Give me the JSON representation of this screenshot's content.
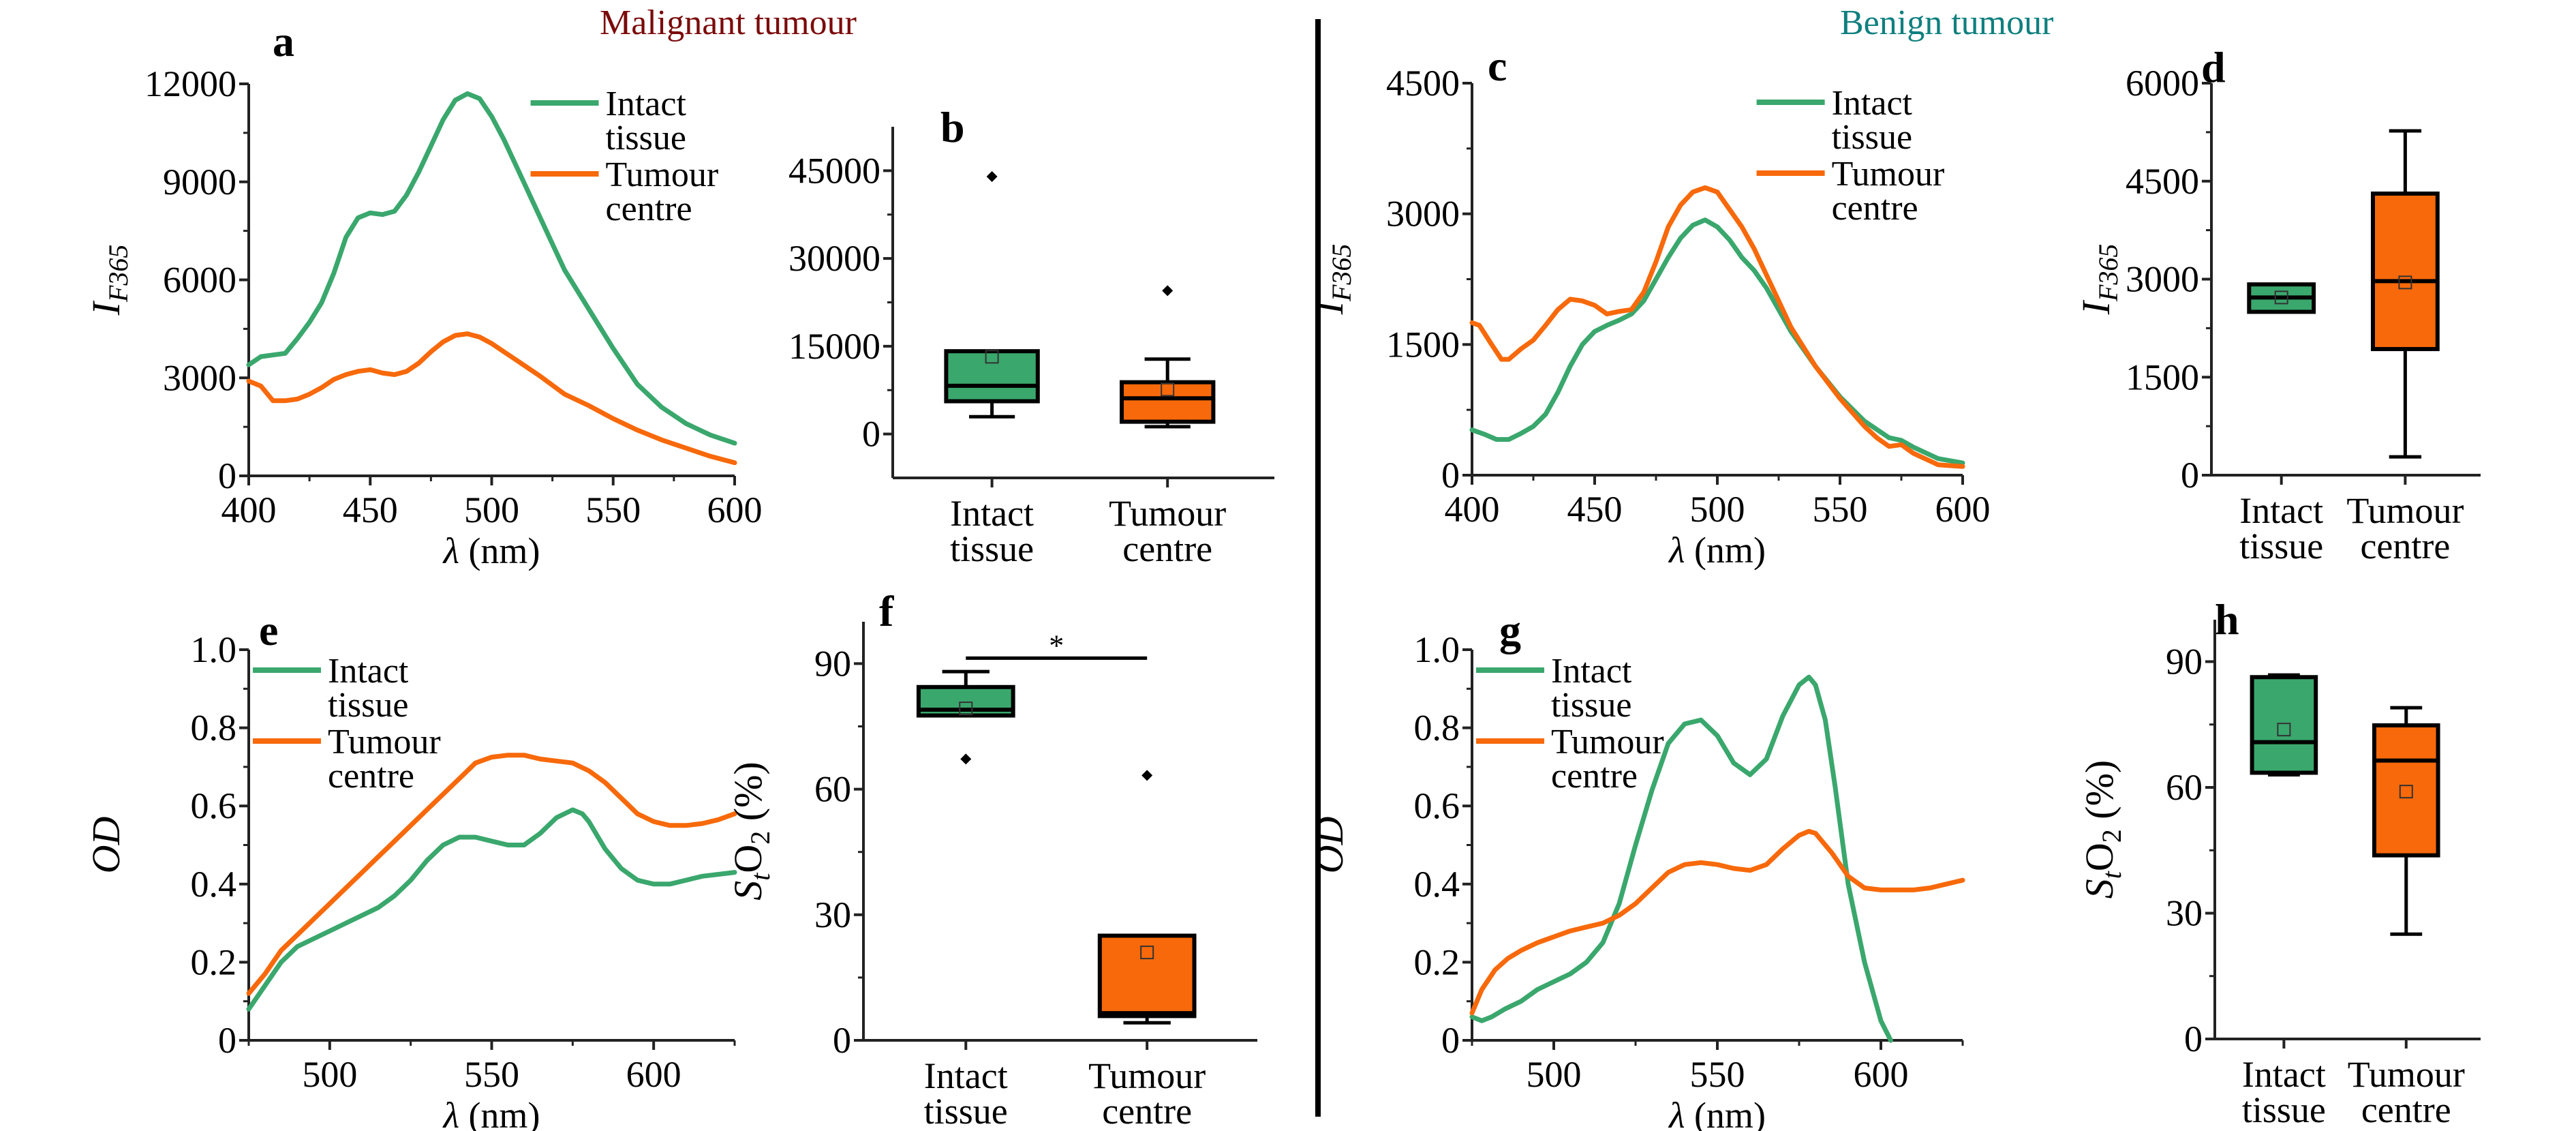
{
  "titles": {
    "malignant": "Malignant tumour",
    "benign": "Benign tumour"
  },
  "colors": {
    "intact": "#3aa76d",
    "tumour": "#f7690a",
    "malignant_title": "#7b0a0a",
    "benign_title": "#0f7f7f"
  },
  "chart_data": [
    {
      "panel": "a",
      "type": "line",
      "title": "",
      "xlabel": "λ (nm)",
      "ylabel": "I_F365",
      "ylabel_main": "I",
      "ylabel_sub": "F365",
      "xlim": [
        400,
        600
      ],
      "ylim": [
        0,
        12000
      ],
      "xticks": [
        400,
        450,
        500,
        550,
        600
      ],
      "yticks": [
        0,
        3000,
        6000,
        9000,
        12000
      ],
      "legend": "top-right",
      "series": [
        {
          "name": "Intact tissue",
          "key": "intact",
          "x": [
            400,
            405,
            410,
            415,
            420,
            425,
            430,
            435,
            440,
            445,
            450,
            455,
            460,
            465,
            470,
            475,
            480,
            485,
            490,
            495,
            500,
            505,
            510,
            515,
            520,
            525,
            530,
            540,
            550,
            560,
            570,
            580,
            590,
            600
          ],
          "y": [
            3400,
            3650,
            3700,
            3750,
            4200,
            4700,
            5300,
            6200,
            7300,
            7900,
            8050,
            8000,
            8100,
            8600,
            9300,
            10100,
            10900,
            11500,
            11700,
            11550,
            11000,
            10300,
            9500,
            8700,
            7900,
            7100,
            6300,
            5100,
            3900,
            2800,
            2100,
            1600,
            1250,
            1000
          ]
        },
        {
          "name": "Tumour centre",
          "key": "tumour",
          "x": [
            400,
            405,
            410,
            415,
            420,
            425,
            430,
            435,
            440,
            445,
            450,
            455,
            460,
            465,
            470,
            475,
            480,
            485,
            490,
            495,
            500,
            505,
            510,
            520,
            530,
            540,
            550,
            560,
            570,
            580,
            590,
            600
          ],
          "y": [
            2900,
            2750,
            2300,
            2300,
            2350,
            2500,
            2700,
            2950,
            3100,
            3200,
            3250,
            3150,
            3100,
            3200,
            3450,
            3800,
            4100,
            4300,
            4350,
            4250,
            4050,
            3800,
            3550,
            3050,
            2500,
            2150,
            1750,
            1400,
            1100,
            850,
            600,
            400
          ]
        }
      ]
    },
    {
      "panel": "b",
      "type": "box",
      "ylabel": "",
      "ylim": [
        -7500,
        52500
      ],
      "yticks": [
        0,
        15000,
        30000,
        45000
      ],
      "categories": [
        "Intact tissue",
        "Tumour centre"
      ],
      "category_lines": [
        [
          "Intact",
          "tissue"
        ],
        [
          "Tumour",
          "centre"
        ]
      ],
      "boxes": [
        {
          "key": "intact",
          "whisker_low": 2950,
          "q1": 5600,
          "median": 8250,
          "q3": 14150,
          "whisker_high": 14150,
          "mean": 13200,
          "outliers": [
            44000
          ]
        },
        {
          "key": "tumour",
          "whisker_low": 1250,
          "q1": 2100,
          "median": 6100,
          "q3": 8850,
          "whisker_high": 12800,
          "mean": 7600,
          "outliers": [
            24500
          ]
        }
      ]
    },
    {
      "panel": "c",
      "type": "line",
      "xlabel": "λ (nm)",
      "ylabel": "I_F365",
      "ylabel_main": "I",
      "ylabel_sub": "F365",
      "xlim": [
        400,
        600
      ],
      "ylim": [
        0,
        4500
      ],
      "xticks": [
        400,
        450,
        500,
        550,
        600
      ],
      "yticks": [
        0,
        1500,
        3000,
        4500
      ],
      "legend": "top-right",
      "series": [
        {
          "name": "Intact tissue",
          "key": "intact",
          "x": [
            400,
            405,
            410,
            415,
            420,
            425,
            430,
            435,
            440,
            445,
            450,
            455,
            460,
            465,
            470,
            475,
            480,
            485,
            490,
            495,
            500,
            505,
            510,
            515,
            520,
            525,
            530,
            540,
            550,
            560,
            570,
            575,
            580,
            590,
            600
          ],
          "y": [
            520,
            470,
            410,
            410,
            480,
            560,
            700,
            950,
            1250,
            1500,
            1650,
            1720,
            1780,
            1850,
            2000,
            2250,
            2500,
            2720,
            2870,
            2930,
            2850,
            2700,
            2500,
            2350,
            2150,
            1900,
            1650,
            1250,
            900,
            620,
            430,
            400,
            320,
            190,
            140
          ]
        },
        {
          "name": "Tumour centre",
          "key": "tumour",
          "x": [
            400,
            403,
            408,
            412,
            415,
            420,
            425,
            430,
            435,
            440,
            445,
            450,
            455,
            460,
            465,
            470,
            475,
            480,
            485,
            490,
            495,
            500,
            505,
            510,
            515,
            520,
            525,
            530,
            540,
            550,
            560,
            565,
            570,
            575,
            580,
            590,
            600
          ],
          "y": [
            1750,
            1720,
            1500,
            1330,
            1330,
            1450,
            1550,
            1720,
            1900,
            2020,
            2000,
            1950,
            1850,
            1880,
            1900,
            2100,
            2450,
            2850,
            3100,
            3250,
            3300,
            3250,
            3050,
            2850,
            2600,
            2300,
            2000,
            1700,
            1250,
            880,
            560,
            430,
            330,
            350,
            250,
            120,
            100
          ]
        }
      ]
    },
    {
      "panel": "d",
      "type": "box",
      "ylabel": "I_F365",
      "ylabel_main": "I",
      "ylabel_sub": "F365",
      "ylim": [
        0,
        6000
      ],
      "yticks": [
        0,
        1500,
        3000,
        4500,
        6000
      ],
      "categories": [
        "Intact tissue",
        "Tumour centre"
      ],
      "category_lines": [
        [
          "Intact",
          "tissue"
        ],
        [
          "Tumour",
          "centre"
        ]
      ],
      "boxes": [
        {
          "key": "intact",
          "whisker_low": 2500,
          "q1": 2500,
          "median": 2720,
          "q3": 2920,
          "whisker_high": 2920,
          "mean": 2720,
          "outliers": []
        },
        {
          "key": "tumour",
          "whisker_low": 280,
          "q1": 1930,
          "median": 2970,
          "q3": 4310,
          "whisker_high": 5270,
          "mean": 2950,
          "outliers": []
        }
      ]
    },
    {
      "panel": "e",
      "type": "line",
      "xlabel": "λ (nm)",
      "ylabel": "OD",
      "xlim": [
        475,
        625
      ],
      "ylim": [
        0,
        1.0
      ],
      "xticks": [
        500,
        550,
        600
      ],
      "yticks": [
        0,
        0.2,
        0.4,
        0.6,
        0.8,
        1.0
      ],
      "ytick_labels": [
        "0",
        "0.2",
        "0.4",
        "0.6",
        "0.8",
        "1.0"
      ],
      "legend": "top-left",
      "series": [
        {
          "name": "Intact tissue",
          "key": "intact",
          "x": [
            475,
            480,
            485,
            490,
            495,
            500,
            505,
            510,
            515,
            520,
            525,
            530,
            535,
            540,
            545,
            550,
            555,
            560,
            565,
            570,
            575,
            578,
            580,
            585,
            590,
            595,
            600,
            605,
            610,
            615,
            620,
            625
          ],
          "y": [
            0.08,
            0.14,
            0.2,
            0.24,
            0.26,
            0.28,
            0.3,
            0.32,
            0.34,
            0.37,
            0.41,
            0.46,
            0.5,
            0.52,
            0.52,
            0.51,
            0.5,
            0.5,
            0.53,
            0.57,
            0.59,
            0.58,
            0.56,
            0.49,
            0.44,
            0.41,
            0.4,
            0.4,
            0.41,
            0.42,
            0.425,
            0.43
          ]
        },
        {
          "name": "Tumour centre",
          "key": "tumour",
          "x": [
            475,
            480,
            485,
            490,
            495,
            500,
            505,
            510,
            515,
            520,
            525,
            530,
            535,
            540,
            545,
            550,
            555,
            560,
            565,
            570,
            575,
            580,
            585,
            590,
            595,
            600,
            605,
            610,
            615,
            620,
            625
          ],
          "y": [
            0.12,
            0.17,
            0.23,
            0.27,
            0.31,
            0.35,
            0.39,
            0.43,
            0.47,
            0.51,
            0.55,
            0.59,
            0.63,
            0.67,
            0.71,
            0.725,
            0.73,
            0.73,
            0.72,
            0.715,
            0.71,
            0.69,
            0.66,
            0.62,
            0.58,
            0.56,
            0.55,
            0.55,
            0.555,
            0.565,
            0.58
          ]
        }
      ]
    },
    {
      "panel": "f",
      "type": "box",
      "ylabel": "S_tO_2 (%)",
      "ylim": [
        0,
        100
      ],
      "yticks": [
        0,
        30,
        60,
        90
      ],
      "categories": [
        "Intact tissue",
        "Tumour centre"
      ],
      "category_lines": [
        [
          "Intact",
          "tissue"
        ],
        [
          "Tumour",
          "centre"
        ]
      ],
      "significance": "*",
      "boxes": [
        {
          "key": "intact",
          "whisker_low": 77.6,
          "q1": 77.6,
          "median": 79.0,
          "q3": 84.4,
          "whisker_high": 88.1,
          "mean": 79.3,
          "outliers": [
            67.2
          ]
        },
        {
          "key": "tumour",
          "whisker_low": 4.2,
          "q1": 5.8,
          "median": 6.5,
          "q3": 25.0,
          "whisker_high": 25.0,
          "mean": 21.0,
          "outliers": [
            63.3
          ]
        }
      ]
    },
    {
      "panel": "g",
      "type": "line",
      "xlabel": "λ (nm)",
      "ylabel": "OD",
      "xlim": [
        475,
        625
      ],
      "ylim": [
        0,
        1.0
      ],
      "xticks": [
        500,
        550,
        600
      ],
      "yticks": [
        0,
        0.2,
        0.4,
        0.6,
        0.8,
        1.0
      ],
      "ytick_labels": [
        "0",
        "0.2",
        "0.4",
        "0.6",
        "0.8",
        "1.0"
      ],
      "legend": "top-left",
      "series": [
        {
          "name": "Intact tissue",
          "key": "intact",
          "x": [
            475,
            478,
            481,
            485,
            490,
            495,
            500,
            505,
            510,
            515,
            520,
            525,
            530,
            535,
            540,
            545,
            550,
            555,
            560,
            565,
            570,
            575,
            578,
            580,
            583,
            586,
            590,
            595,
            600,
            603
          ],
          "y": [
            0.06,
            0.05,
            0.06,
            0.08,
            0.1,
            0.13,
            0.15,
            0.17,
            0.2,
            0.25,
            0.35,
            0.5,
            0.64,
            0.76,
            0.81,
            0.82,
            0.78,
            0.71,
            0.68,
            0.72,
            0.83,
            0.91,
            0.93,
            0.91,
            0.82,
            0.65,
            0.4,
            0.2,
            0.05,
            0.0
          ]
        },
        {
          "name": "Tumour centre",
          "key": "tumour",
          "x": [
            475,
            478,
            482,
            486,
            490,
            495,
            500,
            505,
            510,
            515,
            520,
            525,
            530,
            535,
            540,
            545,
            550,
            555,
            560,
            565,
            570,
            575,
            578,
            580,
            585,
            590,
            595,
            600,
            605,
            610,
            615,
            620,
            625
          ],
          "y": [
            0.07,
            0.13,
            0.18,
            0.21,
            0.23,
            0.25,
            0.265,
            0.28,
            0.29,
            0.3,
            0.32,
            0.35,
            0.39,
            0.43,
            0.45,
            0.455,
            0.45,
            0.44,
            0.435,
            0.45,
            0.49,
            0.525,
            0.535,
            0.53,
            0.48,
            0.42,
            0.39,
            0.385,
            0.385,
            0.385,
            0.39,
            0.4,
            0.41
          ]
        }
      ]
    },
    {
      "panel": "h",
      "type": "box",
      "ylabel": "S_tO_2 (%)",
      "ylim": [
        0,
        100
      ],
      "yticks": [
        0,
        30,
        60,
        90
      ],
      "categories": [
        "Intact tissue",
        "Tumour centre"
      ],
      "category_lines": [
        [
          "Intact",
          "tissue"
        ],
        [
          "Tumour",
          "centre"
        ]
      ],
      "boxes": [
        {
          "key": "intact",
          "whisker_low": 63.0,
          "q1": 63.5,
          "median": 70.8,
          "q3": 86.3,
          "whisker_high": 86.8,
          "mean": 73.8,
          "outliers": []
        },
        {
          "key": "tumour",
          "whisker_low": 25.0,
          "q1": 43.8,
          "median": 66.4,
          "q3": 74.8,
          "whisker_high": 79.0,
          "mean": 59.0,
          "outliers": []
        }
      ]
    }
  ]
}
